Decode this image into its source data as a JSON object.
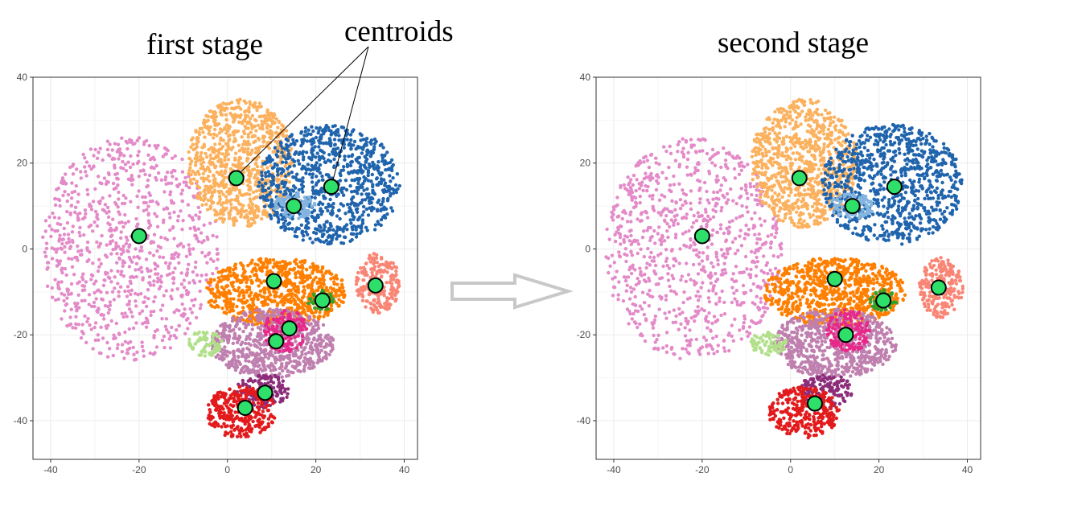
{
  "annotation": "centroids",
  "arrow_color": "#c8c8c8",
  "centroid_color": "#2ee06a",
  "chart_data": [
    {
      "type": "scatter",
      "title": "first stage",
      "xlabel": "",
      "ylabel": "",
      "xlim": [
        -44,
        43
      ],
      "ylim": [
        -49,
        40
      ],
      "xticks": [
        "-40",
        "-20",
        "0",
        "20",
        "40"
      ],
      "yticks": [
        "40",
        "20",
        "0",
        "-20",
        "-40"
      ],
      "grid": true,
      "centroids": [
        {
          "x": -20,
          "y": 3
        },
        {
          "x": 2,
          "y": 16.5
        },
        {
          "x": 23.5,
          "y": 14.5
        },
        {
          "x": 15,
          "y": 10
        },
        {
          "x": 10.5,
          "y": -7.5
        },
        {
          "x": 33.5,
          "y": -8.5
        },
        {
          "x": 21.5,
          "y": -12
        },
        {
          "x": 14,
          "y": -18.5
        },
        {
          "x": 11,
          "y": -21.5
        },
        {
          "x": 8.5,
          "y": -33.5
        },
        {
          "x": 4,
          "y": -37
        }
      ],
      "clusters": [
        {
          "color": "#e38bc8",
          "cx": -22,
          "cy": 0,
          "rx": 20,
          "ry": 26
        },
        {
          "color": "#fbb15e",
          "cx": 3,
          "cy": 20,
          "rx": 12,
          "ry": 15
        },
        {
          "color": "#1f64ad",
          "cx": 23,
          "cy": 15,
          "rx": 16,
          "ry": 14
        },
        {
          "color": "#84b5e0",
          "cx": 15,
          "cy": 10,
          "rx": 5,
          "ry": 3
        },
        {
          "color": "#ff7f00",
          "cx": 11,
          "cy": -10,
          "rx": 16,
          "ry": 8
        },
        {
          "color": "#f98575",
          "cx": 34,
          "cy": -8,
          "rx": 5,
          "ry": 7
        },
        {
          "color": "#33a02c",
          "cx": 21,
          "cy": -12,
          "rx": 3,
          "ry": 2.5
        },
        {
          "color": "#bf7faf",
          "cx": 10,
          "cy": -22,
          "rx": 14,
          "ry": 8
        },
        {
          "color": "#e7298a",
          "cx": 13,
          "cy": -19,
          "rx": 5,
          "ry": 5
        },
        {
          "color": "#b2df8a",
          "cx": -5,
          "cy": -22,
          "rx": 4,
          "ry": 3
        },
        {
          "color": "#8c2d7a",
          "cx": 8,
          "cy": -33,
          "rx": 6,
          "ry": 4
        },
        {
          "color": "#e31a1c",
          "cx": 3,
          "cy": -38,
          "rx": 8,
          "ry": 6
        }
      ]
    },
    {
      "type": "scatter",
      "title": "second stage",
      "xlabel": "",
      "ylabel": "",
      "xlim": [
        -44,
        43
      ],
      "ylim": [
        -49,
        40
      ],
      "xticks": [
        "-40",
        "-20",
        "0",
        "20",
        "40"
      ],
      "yticks": [
        "40",
        "20",
        "0",
        "-20",
        "-40"
      ],
      "grid": true,
      "centroids": [
        {
          "x": -20,
          "y": 3
        },
        {
          "x": 2,
          "y": 16.5
        },
        {
          "x": 23.5,
          "y": 14.5
        },
        {
          "x": 14,
          "y": 10
        },
        {
          "x": 10,
          "y": -7
        },
        {
          "x": 33.5,
          "y": -9
        },
        {
          "x": 21,
          "y": -12
        },
        {
          "x": 12.5,
          "y": -20
        },
        {
          "x": 5.5,
          "y": -36
        }
      ],
      "clusters": [
        {
          "color": "#e38bc8",
          "cx": -22,
          "cy": 0,
          "rx": 20,
          "ry": 26
        },
        {
          "color": "#fbb15e",
          "cx": 3,
          "cy": 20,
          "rx": 12,
          "ry": 15
        },
        {
          "color": "#1f64ad",
          "cx": 23,
          "cy": 15,
          "rx": 16,
          "ry": 14
        },
        {
          "color": "#84b5e0",
          "cx": 14,
          "cy": 10,
          "rx": 5,
          "ry": 3
        },
        {
          "color": "#ff7f00",
          "cx": 10,
          "cy": -10,
          "rx": 16,
          "ry": 8
        },
        {
          "color": "#f98575",
          "cx": 34,
          "cy": -9,
          "rx": 5,
          "ry": 7
        },
        {
          "color": "#33a02c",
          "cx": 21,
          "cy": -12,
          "rx": 3,
          "ry": 2.5
        },
        {
          "color": "#bf7faf",
          "cx": 10,
          "cy": -22,
          "rx": 14,
          "ry": 8
        },
        {
          "color": "#e7298a",
          "cx": 13,
          "cy": -19,
          "rx": 5,
          "ry": 5
        },
        {
          "color": "#b2df8a",
          "cx": -5,
          "cy": -22,
          "rx": 4,
          "ry": 3
        },
        {
          "color": "#8c2d7a",
          "cx": 8,
          "cy": -33,
          "rx": 6,
          "ry": 4
        },
        {
          "color": "#e31a1c",
          "cx": 3,
          "cy": -38,
          "rx": 8,
          "ry": 6
        }
      ]
    }
  ]
}
